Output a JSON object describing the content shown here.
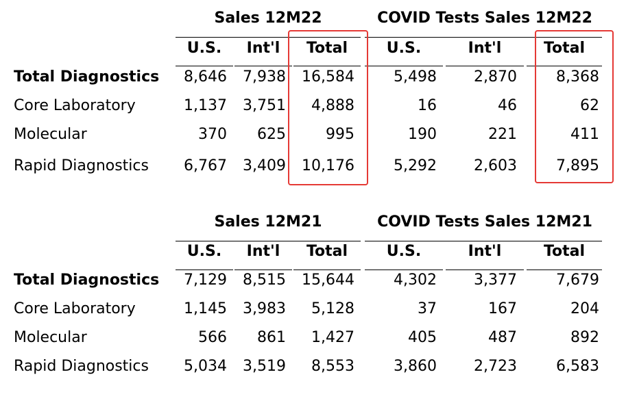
{
  "row_labels": [
    "Total Diagnostics",
    "Core Laboratory",
    "Molecular",
    "Rapid Diagnostics"
  ],
  "column_headers": [
    "U.S.",
    "Int'l",
    "Total",
    "U.S.",
    "Int'l",
    "Total"
  ],
  "tables": [
    {
      "sales_header": "Sales 12M22",
      "covid_header": "COVID Tests Sales 12M22",
      "rows": [
        {
          "sales": [
            "8,646",
            "7,938",
            "16,584"
          ],
          "covid": [
            "5,498",
            "2,870",
            "8,368"
          ]
        },
        {
          "sales": [
            "1,137",
            "3,751",
            "4,888"
          ],
          "covid": [
            "16",
            "46",
            "62"
          ]
        },
        {
          "sales": [
            "370",
            "625",
            "995"
          ],
          "covid": [
            "190",
            "221",
            "411"
          ]
        },
        {
          "sales": [
            "6,767",
            "3,409",
            "10,176"
          ],
          "covid": [
            "5,292",
            "2,603",
            "7,895"
          ]
        }
      ]
    },
    {
      "sales_header": "Sales 12M21",
      "covid_header": "COVID Tests Sales 12M21",
      "rows": [
        {
          "sales": [
            "7,129",
            "8,515",
            "15,644"
          ],
          "covid": [
            "4,302",
            "3,377",
            "7,679"
          ]
        },
        {
          "sales": [
            "1,145",
            "3,983",
            "5,128"
          ],
          "covid": [
            "37",
            "167",
            "204"
          ]
        },
        {
          "sales": [
            "566",
            "861",
            "1,427"
          ],
          "covid": [
            "405",
            "487",
            "892"
          ]
        },
        {
          "sales": [
            "5,034",
            "3,519",
            "8,553"
          ],
          "covid": [
            "3,860",
            "2,723",
            "6,583"
          ]
        }
      ]
    }
  ],
  "highlight_color": "#e53935"
}
